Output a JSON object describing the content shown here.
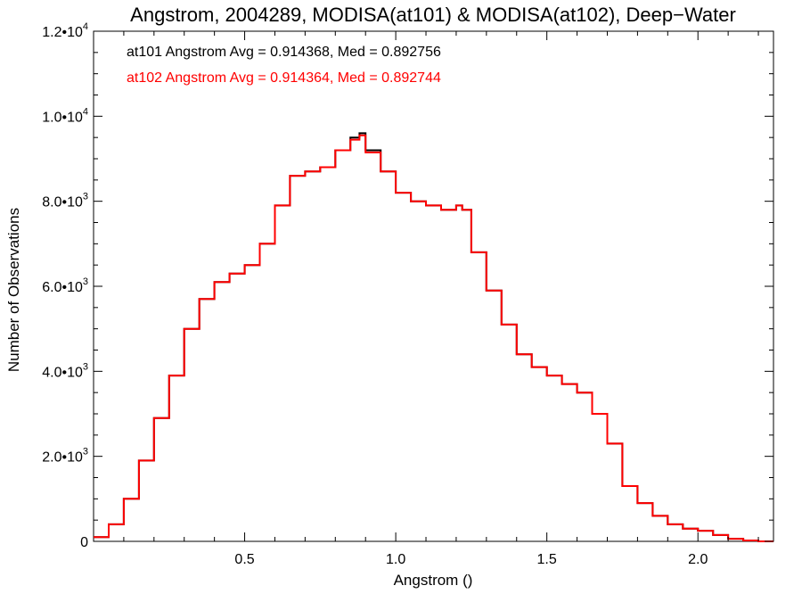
{
  "chart_data": {
    "type": "histogram-step",
    "title": "Angstrom, 2004289, MODISA(at101) & MODISA(at102), Deep−Water",
    "xlabel": "Angstrom ()",
    "ylabel": "Number of Observations",
    "xlim": [
      0.0,
      2.25
    ],
    "ylim": [
      0,
      12000
    ],
    "grid": false,
    "x_ticks": [
      {
        "value": 0.5,
        "label": "0.5"
      },
      {
        "value": 1.0,
        "label": "1.0"
      },
      {
        "value": 1.5,
        "label": "1.5"
      },
      {
        "value": 2.0,
        "label": "2.0"
      }
    ],
    "y_ticks": [
      {
        "value": 0,
        "mantissa": "0",
        "exponent": ""
      },
      {
        "value": 2000,
        "mantissa": "2.0•10",
        "exponent": "3"
      },
      {
        "value": 4000,
        "mantissa": "4.0•10",
        "exponent": "3"
      },
      {
        "value": 6000,
        "mantissa": "6.0•10",
        "exponent": "3"
      },
      {
        "value": 8000,
        "mantissa": "8.0•10",
        "exponent": "3"
      },
      {
        "value": 10000,
        "mantissa": "1.0•10",
        "exponent": "4"
      },
      {
        "value": 12000,
        "mantissa": "1.2•10",
        "exponent": "4"
      }
    ],
    "annotations": [
      {
        "text": "at101 Angstrom Avg = 0.914368, Med = 0.892756",
        "color": "#000000"
      },
      {
        "text": "at102 Angstrom Avg = 0.914364, Med = 0.892744",
        "color": "#ff0000"
      }
    ],
    "series": [
      {
        "color": "#000000",
        "x": [
          0.0,
          0.05,
          0.1,
          0.15,
          0.2,
          0.25,
          0.3,
          0.35,
          0.4,
          0.45,
          0.5,
          0.55,
          0.6,
          0.65,
          0.7,
          0.75,
          0.8,
          0.85,
          0.88,
          0.9,
          0.95,
          1.0,
          1.05,
          1.1,
          1.15,
          1.2,
          1.22,
          1.25,
          1.3,
          1.35,
          1.4,
          1.45,
          1.5,
          1.55,
          1.6,
          1.65,
          1.7,
          1.75,
          1.8,
          1.85,
          1.9,
          1.95,
          2.0,
          2.05,
          2.1,
          2.15,
          2.2,
          2.25
        ],
        "y": [
          100,
          400,
          1000,
          1900,
          2900,
          3900,
          5000,
          5700,
          6100,
          6300,
          6500,
          7000,
          7900,
          8600,
          8700,
          8800,
          9200,
          9500,
          9600,
          9200,
          8700,
          8200,
          8000,
          7900,
          7800,
          7900,
          7800,
          6800,
          5900,
          5100,
          4400,
          4100,
          3900,
          3700,
          3500,
          3000,
          2300,
          1300,
          900,
          600,
          400,
          300,
          250,
          150,
          60,
          20,
          0,
          0
        ]
      },
      {
        "color": "#ff0000",
        "x": [
          0.0,
          0.05,
          0.1,
          0.15,
          0.2,
          0.25,
          0.3,
          0.35,
          0.4,
          0.45,
          0.5,
          0.55,
          0.6,
          0.65,
          0.7,
          0.75,
          0.8,
          0.85,
          0.88,
          0.9,
          0.95,
          1.0,
          1.05,
          1.1,
          1.15,
          1.2,
          1.22,
          1.25,
          1.3,
          1.35,
          1.4,
          1.45,
          1.5,
          1.55,
          1.6,
          1.65,
          1.7,
          1.75,
          1.8,
          1.85,
          1.9,
          1.95,
          2.0,
          2.05,
          2.1,
          2.15,
          2.2,
          2.25
        ],
        "y": [
          100,
          400,
          1000,
          1900,
          2900,
          3900,
          5000,
          5700,
          6100,
          6300,
          6500,
          7000,
          7900,
          8600,
          8700,
          8800,
          9200,
          9450,
          9550,
          9150,
          8700,
          8200,
          8000,
          7900,
          7800,
          7900,
          7800,
          6800,
          5900,
          5100,
          4400,
          4100,
          3900,
          3700,
          3500,
          3000,
          2300,
          1300,
          900,
          600,
          400,
          300,
          250,
          150,
          60,
          20,
          0,
          0
        ]
      }
    ]
  }
}
